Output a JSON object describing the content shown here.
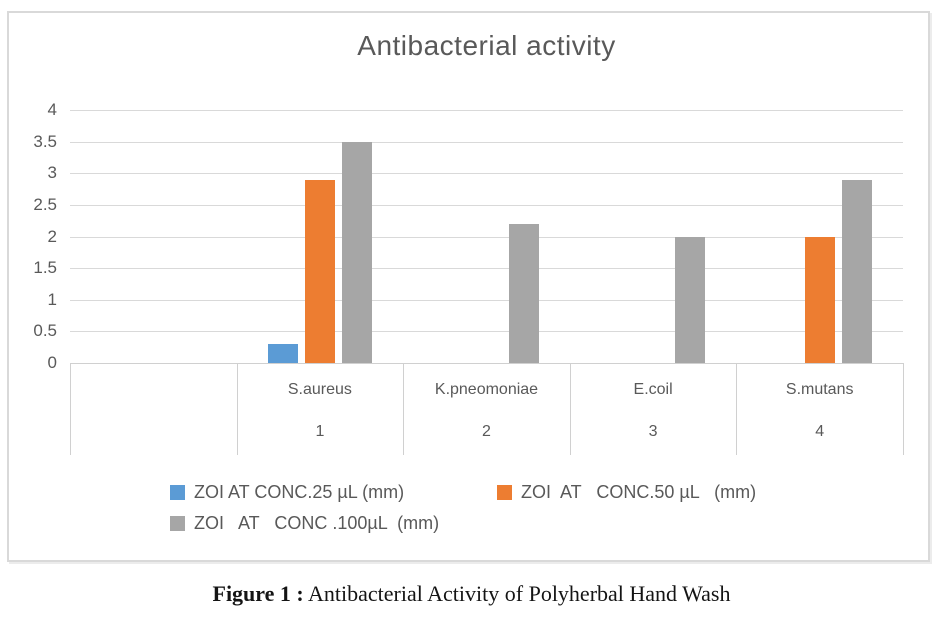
{
  "figure": {
    "caption_bold": "Figure 1 :",
    "caption_rest": " Antibacterial Activity of Polyherbal Hand Wash"
  },
  "chart_data": {
    "type": "bar",
    "title": "Antibacterial activity",
    "categories": [
      "S.aureus",
      "K.pneomoniae",
      "E.coil",
      "S.mutans"
    ],
    "category_numbers": [
      "1",
      "2",
      "3",
      "4"
    ],
    "leading_empty_category": true,
    "series": [
      {
        "name": "ZOI AT CONC.25 µL (mm)",
        "color": "#5b9bd5",
        "values": [
          0.3,
          null,
          null,
          null
        ]
      },
      {
        "name": "ZOI  AT   CONC.50 µL   (mm)",
        "color": "#ed7d31",
        "values": [
          2.9,
          null,
          null,
          2
        ]
      },
      {
        "name": "ZOI   AT   CONC .100µL  (mm)",
        "color": "#a6a6a6",
        "values": [
          3.5,
          2.2,
          2,
          2.9
        ]
      }
    ],
    "xlabel": "",
    "ylabel": "",
    "ylim": [
      0,
      4
    ],
    "ytick_step": 0.5,
    "yticks": [
      4,
      3.5,
      3,
      2.5,
      2,
      1.5,
      1,
      0.5,
      0
    ],
    "grid": true,
    "legend_position": "bottom",
    "text_color": "#595959",
    "gridline_color": "#d9d9d9"
  }
}
